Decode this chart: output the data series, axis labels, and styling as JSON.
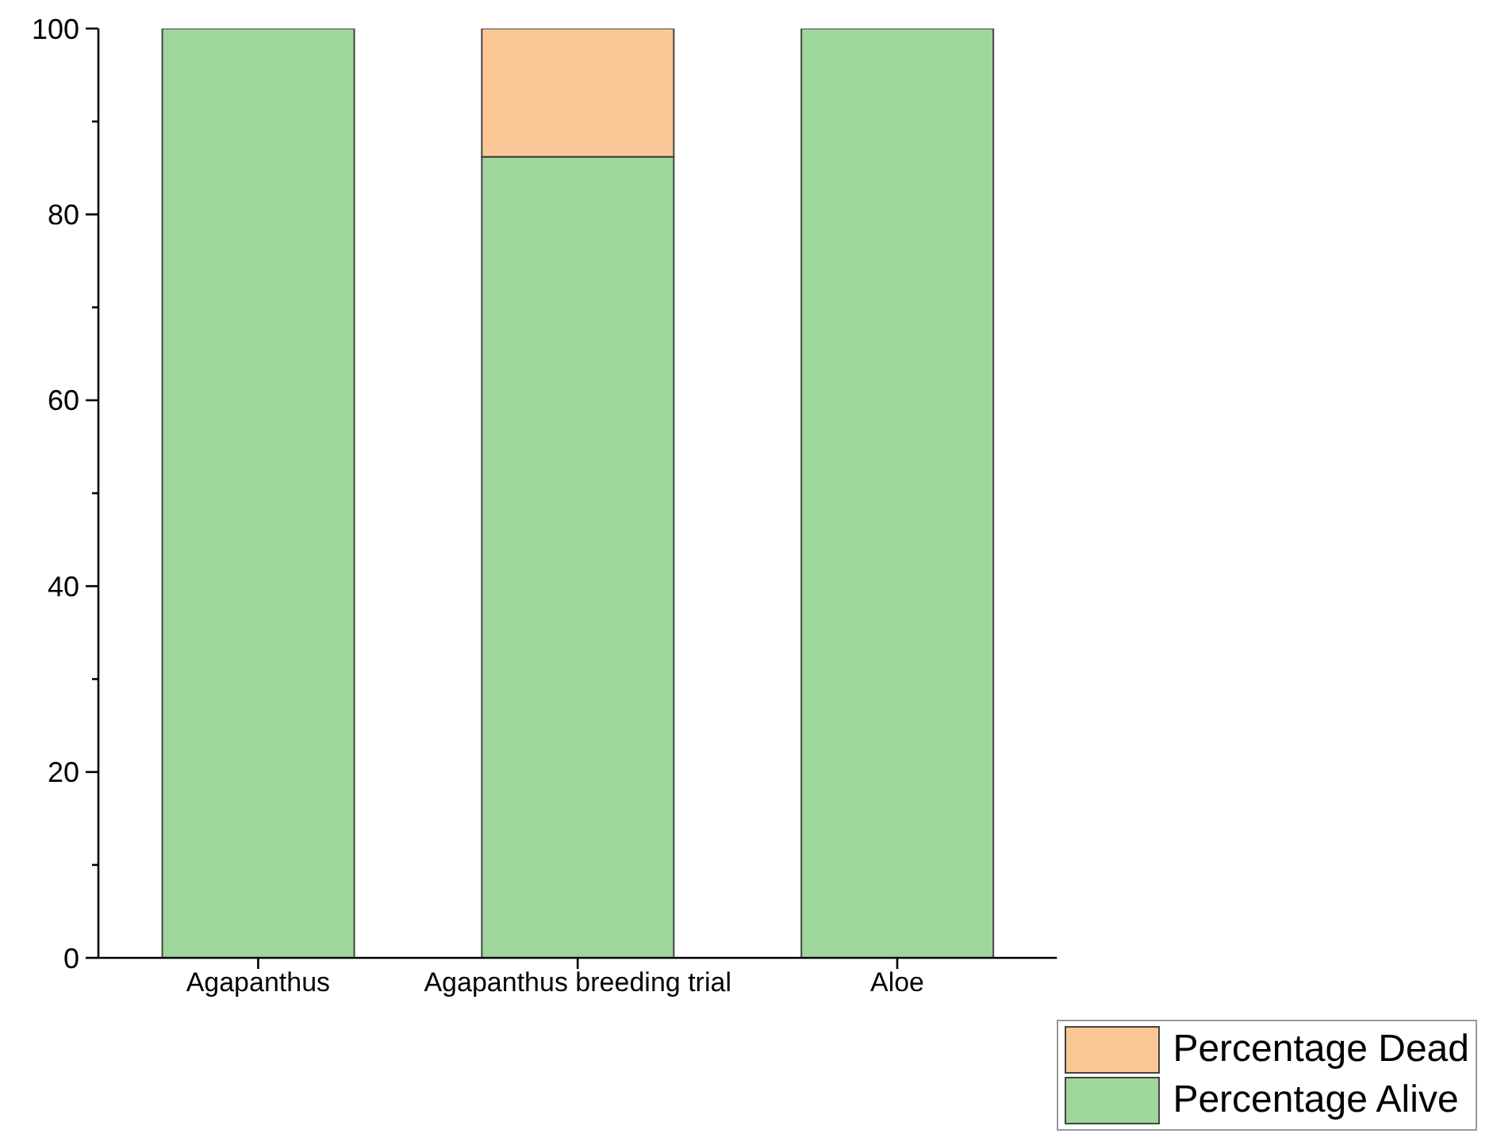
{
  "chart_data": {
    "type": "bar",
    "stacked": true,
    "categories": [
      "Agapanthus",
      "Agapanthus breeding trial",
      "Aloe"
    ],
    "series": [
      {
        "name": "Percentage Alive",
        "color": "#9ed69c",
        "values": [
          100,
          86.2,
          100
        ]
      },
      {
        "name": "Percentage Dead",
        "color": "#fbc797",
        "values": [
          0,
          13.8,
          0
        ]
      }
    ],
    "ylim": [
      0,
      100
    ],
    "yticks": [
      0,
      {
        "value": 10,
        "label": null
      },
      20,
      {
        "value": 30,
        "label": null
      },
      40,
      {
        "value": 50,
        "label": null
      },
      60,
      {
        "value": 70,
        "label": null
      },
      80,
      {
        "value": 90,
        "label": null
      },
      100
    ],
    "grid": false,
    "legend": "bottom right"
  }
}
